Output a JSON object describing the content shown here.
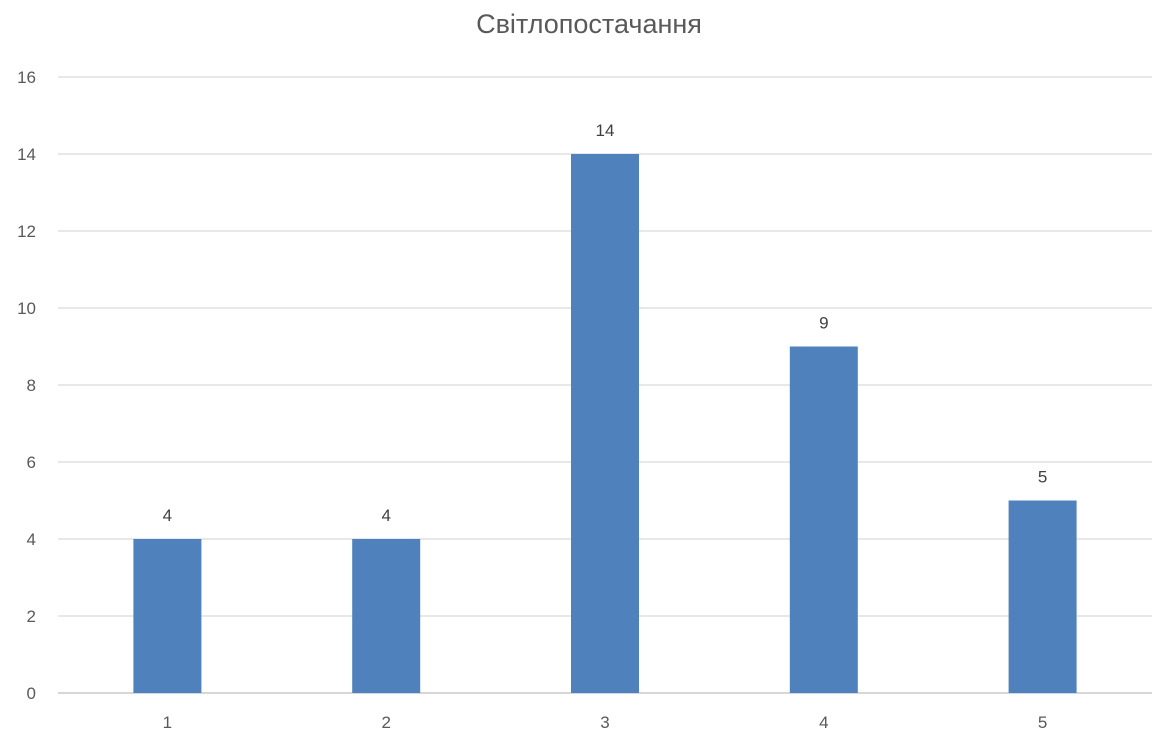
{
  "chart_data": {
    "type": "bar",
    "title": "Світлопостачання",
    "categories": [
      "1",
      "2",
      "3",
      "4",
      "5"
    ],
    "values": [
      4,
      4,
      14,
      9,
      5
    ],
    "data_labels": [
      "4",
      "4",
      "14",
      "9",
      "5"
    ],
    "ylim": [
      0,
      16
    ],
    "yticks": [
      0,
      2,
      4,
      6,
      8,
      10,
      12,
      14,
      16
    ],
    "grid": true,
    "legend": "none",
    "bar_color": "#4f81bd"
  }
}
